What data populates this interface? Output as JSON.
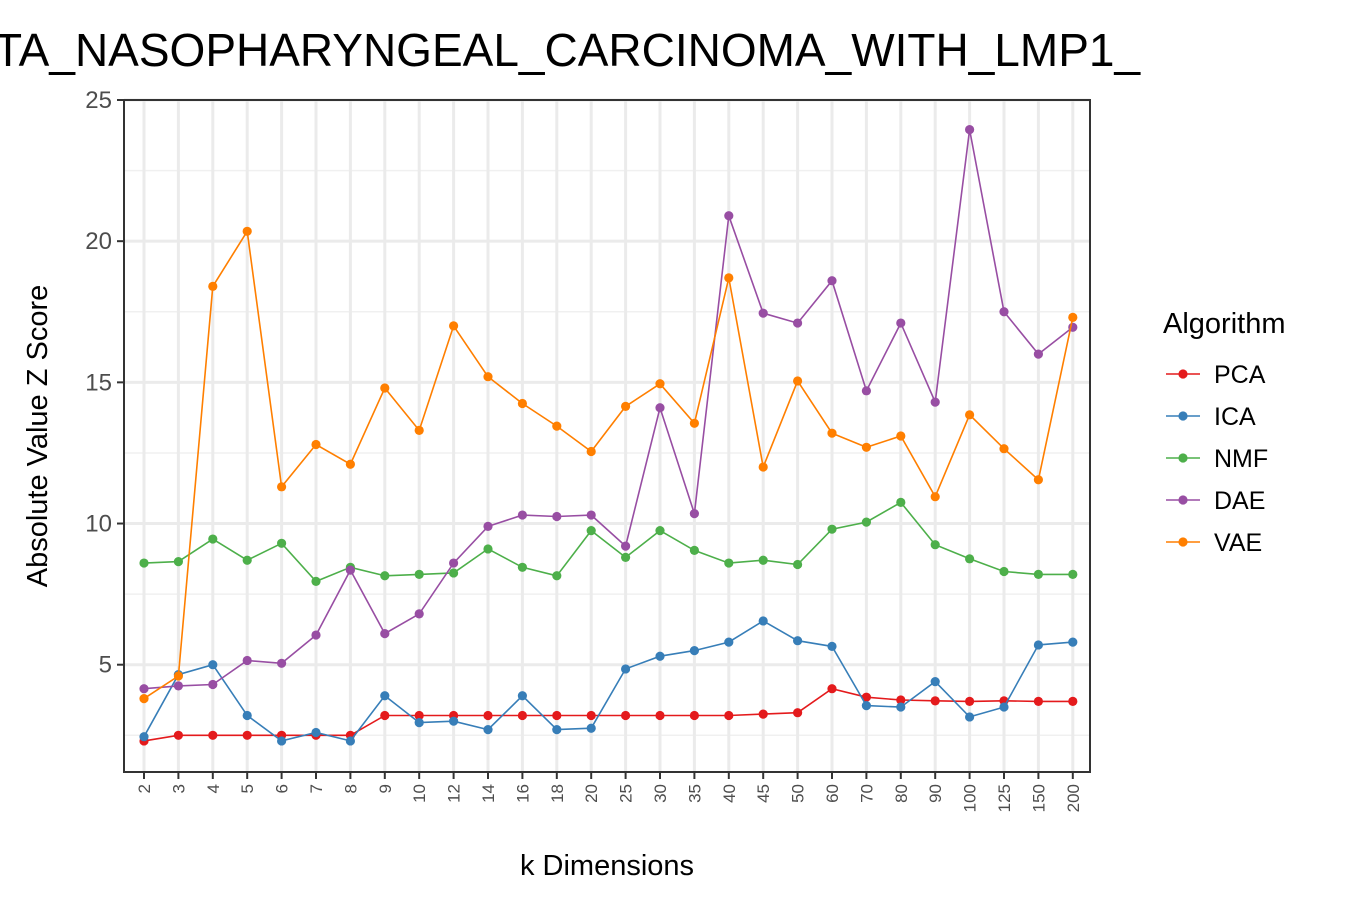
{
  "chart_data": {
    "type": "line",
    "title": "TA_NASOPHARYNGEAL_CARCINOMA_WITH_LMP1_",
    "xlabel": "k Dimensions",
    "ylabel": "Absolute Value Z Score",
    "categories": [
      "2",
      "3",
      "4",
      "5",
      "6",
      "7",
      "8",
      "9",
      "10",
      "12",
      "14",
      "16",
      "18",
      "20",
      "25",
      "30",
      "35",
      "40",
      "45",
      "50",
      "60",
      "70",
      "80",
      "90",
      "100",
      "125",
      "150",
      "200"
    ],
    "ylim": [
      1.2,
      25
    ],
    "yticks": [
      "5",
      "10",
      "15",
      "20",
      "25"
    ],
    "grid": true,
    "legend_title": "Algorithm",
    "legend_position": "right",
    "series": [
      {
        "name": "PCA",
        "color": "#e41a1c",
        "values": [
          2.3,
          2.5,
          2.5,
          2.5,
          2.5,
          2.5,
          2.5,
          3.2,
          3.2,
          3.2,
          3.2,
          3.2,
          3.2,
          3.2,
          3.2,
          3.2,
          3.2,
          3.2,
          3.25,
          3.3,
          4.15,
          3.85,
          3.75,
          3.72,
          3.7,
          3.72,
          3.7,
          3.7
        ]
      },
      {
        "name": "ICA",
        "color": "#377eb8",
        "values": [
          2.45,
          4.65,
          5.0,
          3.2,
          2.3,
          2.6,
          2.3,
          3.9,
          2.95,
          3.0,
          2.7,
          3.9,
          2.7,
          2.75,
          4.85,
          5.3,
          5.5,
          5.8,
          6.55,
          5.85,
          5.65,
          3.55,
          3.5,
          4.4,
          3.15,
          3.5,
          5.7,
          5.8
        ]
      },
      {
        "name": "NMF",
        "color": "#4daf4a",
        "values": [
          8.6,
          8.65,
          9.45,
          8.7,
          9.3,
          7.95,
          8.45,
          8.15,
          8.2,
          8.25,
          9.1,
          8.45,
          8.15,
          9.75,
          8.8,
          9.75,
          9.05,
          8.6,
          8.7,
          8.55,
          9.8,
          10.05,
          10.75,
          9.25,
          8.75,
          8.3,
          8.2,
          8.2
        ]
      },
      {
        "name": "DAE",
        "color": "#984ea3",
        "values": [
          4.15,
          4.25,
          4.3,
          5.15,
          5.05,
          6.05,
          8.35,
          6.1,
          6.8,
          8.6,
          9.9,
          10.3,
          10.25,
          10.3,
          9.2,
          14.1,
          10.35,
          20.9,
          17.45,
          17.1,
          18.6,
          14.7,
          17.1,
          14.3,
          23.95,
          17.5,
          16.0,
          16.95
        ]
      },
      {
        "name": "VAE",
        "color": "#ff7f00",
        "values": [
          3.8,
          4.6,
          18.4,
          20.35,
          11.3,
          12.8,
          12.1,
          14.8,
          13.3,
          17.0,
          15.2,
          14.25,
          13.45,
          12.55,
          14.15,
          14.95,
          13.55,
          18.7,
          12.0,
          15.05,
          13.2,
          12.7,
          13.1,
          10.95,
          13.85,
          12.65,
          11.55,
          17.3
        ]
      }
    ]
  }
}
